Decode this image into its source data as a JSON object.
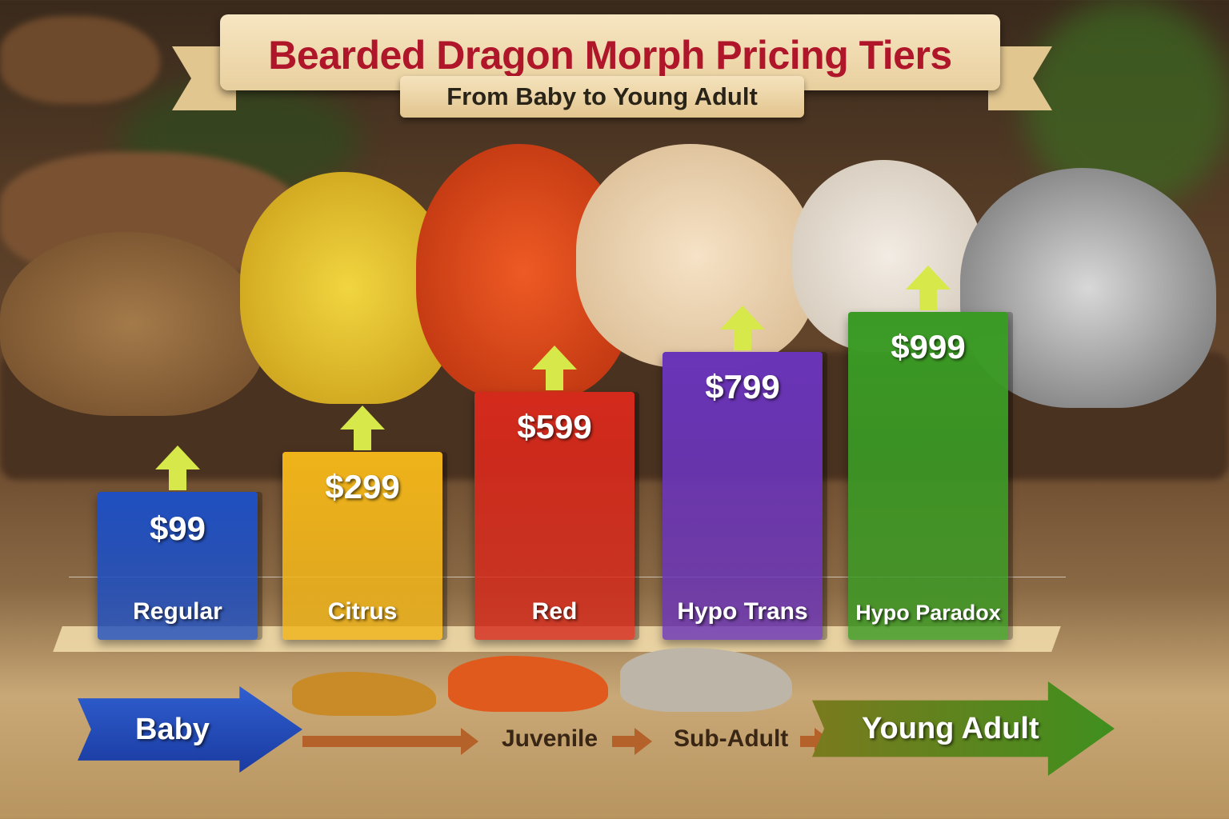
{
  "chart_data": {
    "type": "bar",
    "title": "Bearded Dragon Morph Pricing Tiers",
    "subtitle": "From Baby to Young Adult",
    "categories": [
      "Regular",
      "Citrus",
      "Red",
      "Hypo Trans",
      "Hypo Paradox"
    ],
    "values": [
      99,
      299,
      599,
      799,
      999
    ],
    "value_labels": [
      "$99",
      "$299",
      "$599",
      "$799",
      "$999"
    ],
    "colors": [
      "#1f4fc0",
      "#f0b41a",
      "#d42a1c",
      "#6a34b8",
      "#3a9a24"
    ],
    "xlabel": "",
    "ylabel": "",
    "grid": false
  },
  "stages": [
    "Baby",
    "Juvenile",
    "Sub-Adult",
    "Young Adult"
  ],
  "colors": {
    "title": "#b0162a",
    "arrow": "#d6e84a",
    "baby_arrow": "#1f3fb0",
    "adult_arrow": "#4a8a1c"
  }
}
